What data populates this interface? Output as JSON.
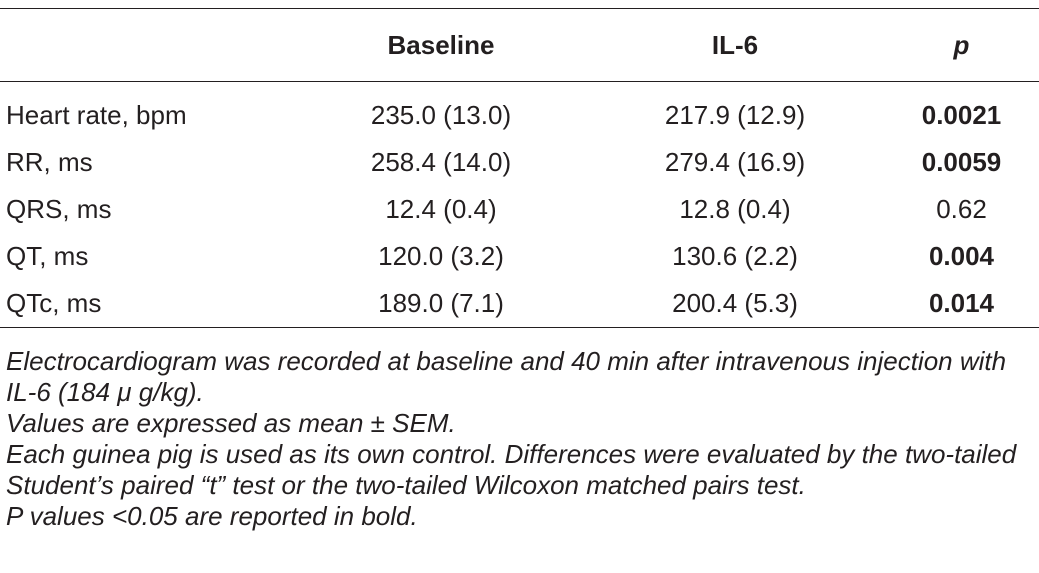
{
  "table": {
    "headers": {
      "parameter": "",
      "baseline": "Baseline",
      "il6": "IL-6",
      "p": "p"
    },
    "rows": [
      {
        "parameter": "Heart rate, bpm",
        "baseline": "235.0 (13.0)",
        "il6": "217.9 (12.9)",
        "p": "0.0021",
        "p_bold": true
      },
      {
        "parameter": "RR, ms",
        "baseline": "258.4 (14.0)",
        "il6": "279.4 (16.9)",
        "p": "0.0059",
        "p_bold": true
      },
      {
        "parameter": "QRS, ms",
        "baseline": "12.4 (0.4)",
        "il6": "12.8 (0.4)",
        "p": "0.62",
        "p_bold": false
      },
      {
        "parameter": "QT, ms",
        "baseline": "120.0 (3.2)",
        "il6": "130.6 (2.2)",
        "p": "0.004",
        "p_bold": true
      },
      {
        "parameter": "QTc, ms",
        "baseline": "189.0 (7.1)",
        "il6": "200.4 (5.3)",
        "p": "0.014",
        "p_bold": true
      }
    ]
  },
  "footnotes": {
    "recording": "Electrocardiogram was recorded at baseline and 40 min after intravenous injection with IL-6 (184 μ g/kg).",
    "values": "Values are expressed as mean ± SEM.",
    "method": "Each guinea pig is used as its own control. Differences were evaluated by the two-tailed Student’s paired “t” test or the two-tailed Wilcoxon matched pairs test.",
    "bold_note": "P values <0.05 are reported in bold."
  }
}
